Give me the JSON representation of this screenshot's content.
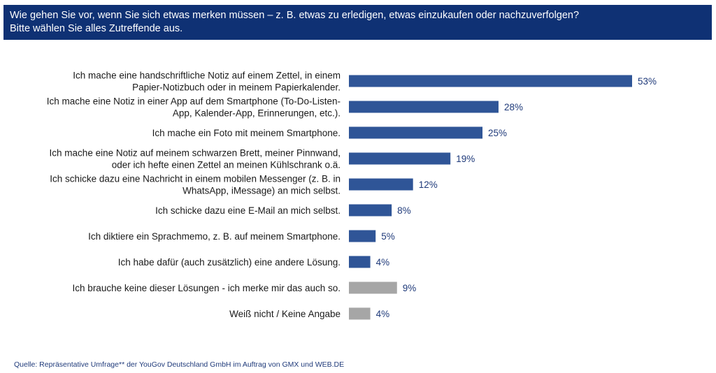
{
  "header": {
    "line1": "Wie gehen Sie vor, wenn Sie sich etwas merken müssen – z. B. etwas zu erledigen, etwas einzukaufen oder nachzuverfolgen?",
    "line2": "Bitte wählen Sie alles Zutreffende aus."
  },
  "source": "Quelle: Repräsentative Umfrage** der YouGov Deutschland GmbH im Auftrag von GMX und WEB.DE",
  "colors": {
    "header": "#0f3174",
    "bar_primary": "#2f5597",
    "bar_secondary": "#a6a6a6",
    "value_text": "#1f3a7a"
  },
  "chart_data": {
    "type": "bar",
    "orientation": "horizontal",
    "unit": "%",
    "xlim": [
      0,
      55
    ],
    "grid": false,
    "categories": [
      [
        "Ich mache eine handschriftliche Notiz auf einem Zettel, in einem",
        "Papier-Notizbuch oder in meinem Papierkalender."
      ],
      [
        "Ich mache eine Notiz in einer App auf dem Smartphone (To-Do-Listen-",
        "App, Kalender-App, Erinnerungen, etc.)."
      ],
      [
        "Ich mache ein Foto mit meinem Smartphone."
      ],
      [
        "Ich mache eine Notiz auf meinem schwarzen Brett, meiner Pinnwand,",
        "oder ich hefte einen Zettel an meinen Kühlschrank o.ä."
      ],
      [
        "Ich schicke dazu eine Nachricht in einem mobilen Messenger (z. B. in",
        "WhatsApp, iMessage) an mich selbst."
      ],
      [
        "Ich schicke dazu eine E-Mail an mich selbst."
      ],
      [
        "Ich diktiere ein Sprachmemo, z. B. auf meinem Smartphone."
      ],
      [
        "Ich habe dafür (auch zusätzlich) eine andere Lösung."
      ],
      [
        "Ich brauche keine dieser Lösungen - ich merke mir das auch so."
      ],
      [
        "Weiß nicht / Keine Angabe"
      ]
    ],
    "values": [
      53,
      28,
      25,
      19,
      12,
      8,
      5,
      4,
      9,
      4
    ],
    "value_labels": [
      "53%",
      "28%",
      "25%",
      "19%",
      "12%",
      "8%",
      "5%",
      "4%",
      "9%",
      "4%"
    ],
    "bar_colors": [
      "primary",
      "primary",
      "primary",
      "primary",
      "primary",
      "primary",
      "primary",
      "primary",
      "secondary",
      "secondary"
    ]
  }
}
